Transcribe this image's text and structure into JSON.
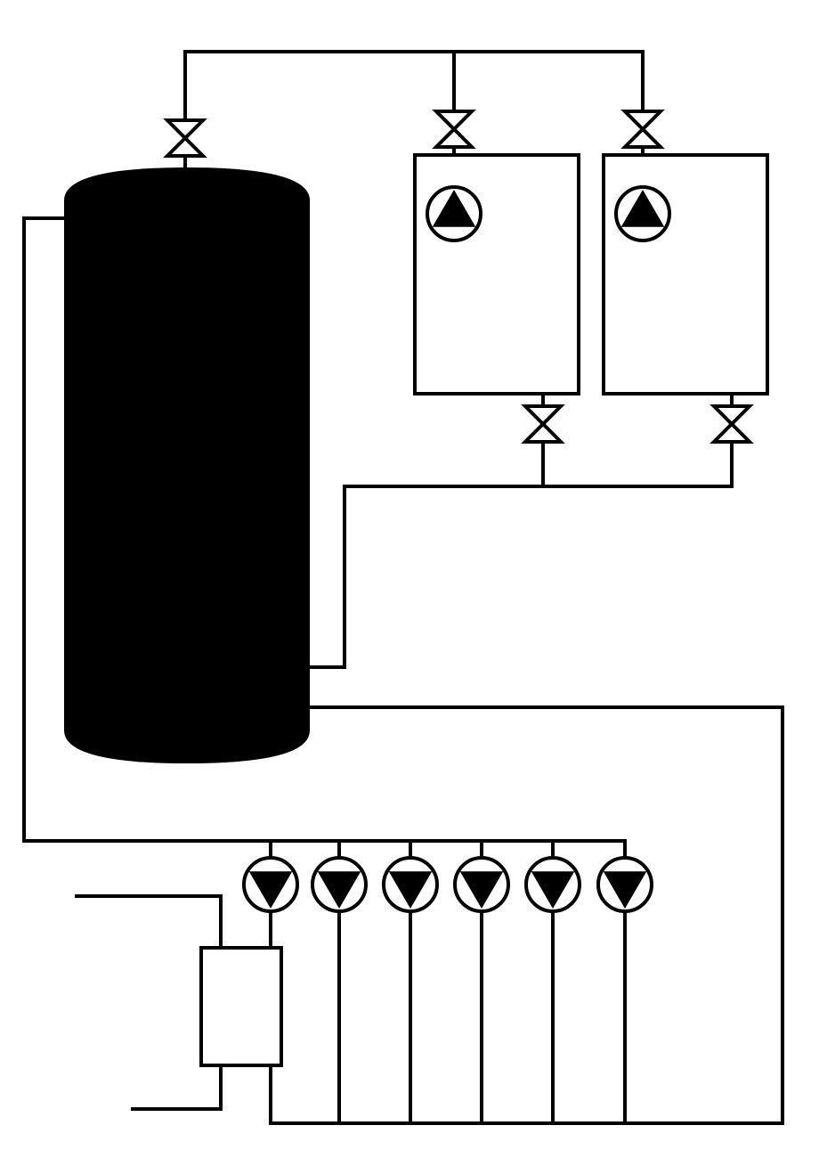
{
  "diagram": {
    "colors": {
      "line": "#000000",
      "background": "#ffffff",
      "tank_fill": "#000000"
    },
    "components": {
      "storage_tank": {
        "icon": "storage-tank-icon"
      },
      "heat_sources": [
        {
          "icon": "heat-source-icon",
          "pump_icon": "pump-icon",
          "valves": 2
        },
        {
          "icon": "heat-source-icon",
          "pump_icon": "pump-icon",
          "valves": 2
        }
      ],
      "tank_top_valve": {
        "icon": "valve-icon"
      },
      "distribution_pumps": {
        "count": 6,
        "icon": "pump-icon"
      },
      "heat_exchanger": {
        "icon": "heat-exchanger-icon"
      }
    }
  }
}
